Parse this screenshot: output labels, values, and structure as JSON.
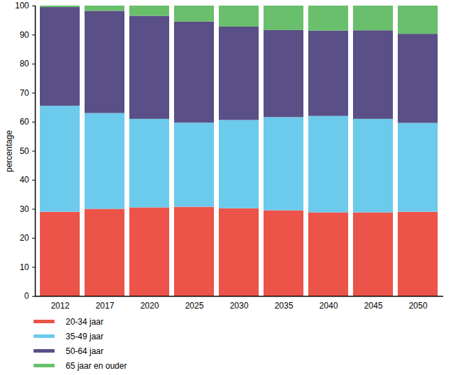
{
  "chart_data": {
    "type": "bar",
    "stacked": true,
    "grid": false,
    "legend": "bottom-left",
    "y_label": "percentage",
    "categories": [
      "2012",
      "2017",
      "2020",
      "2025",
      "2030",
      "2035",
      "2040",
      "2045",
      "2050"
    ],
    "series": [
      {
        "name": "20-34 jaar",
        "color": "#ec5349",
        "values": [
          29,
          30,
          30.5,
          30.7,
          30.2,
          29.5,
          28.8,
          28.8,
          29
        ]
      },
      {
        "name": "35-49 jaar",
        "color": "#6ccaec",
        "values": [
          36.5,
          33,
          30.5,
          29,
          30.4,
          32.1,
          33.2,
          32.2,
          30.6
        ]
      },
      {
        "name": "50-64 jaar",
        "color": "#5a4f86",
        "values": [
          34,
          35.2,
          35.5,
          34.8,
          32.2,
          30,
          29.4,
          30.5,
          30.7
        ]
      },
      {
        "name": "65 jaar en ouder",
        "color": "#69bf6b",
        "values": [
          0.5,
          1.8,
          3.5,
          5.5,
          7.2,
          8.4,
          8.6,
          8.5,
          9.7
        ]
      }
    ],
    "ylim": [
      0,
      100
    ],
    "yticks": [
      0,
      10,
      20,
      30,
      40,
      50,
      60,
      70,
      80,
      90,
      100
    ]
  }
}
